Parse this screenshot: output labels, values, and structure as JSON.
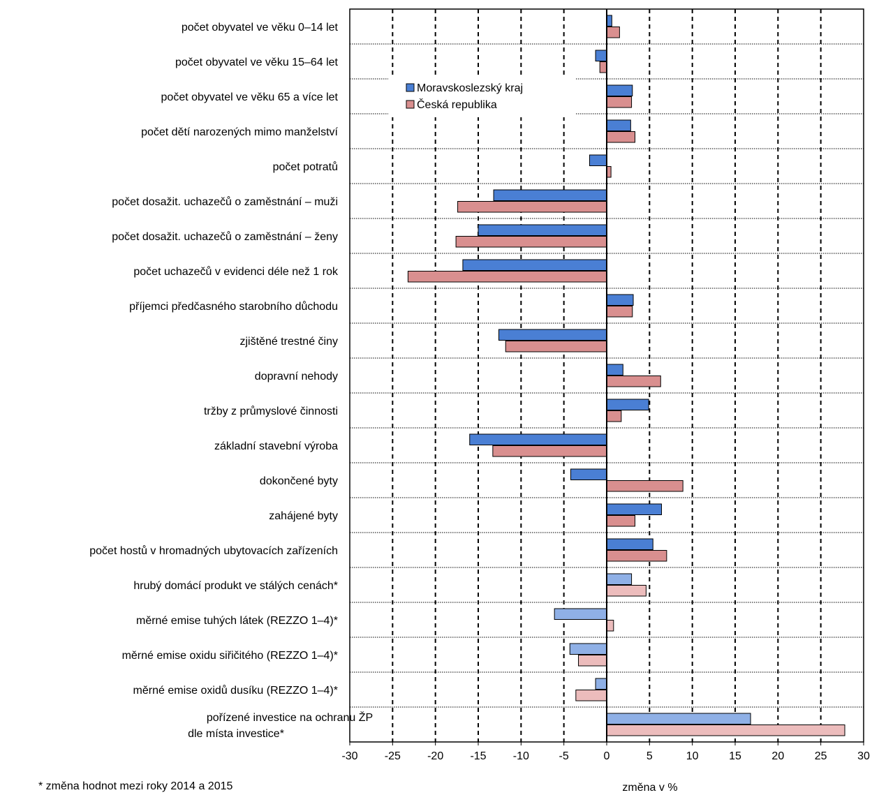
{
  "chart_data": {
    "type": "bar",
    "orientation": "horizontal",
    "xlabel": "změna v %",
    "xlim": [
      -30,
      30
    ],
    "xticks": [
      -30,
      -25,
      -20,
      -15,
      -10,
      -5,
      0,
      5,
      10,
      15,
      20,
      25,
      30
    ],
    "grid": "vertical dashed",
    "legend_position": "top-center",
    "categories": [
      "počet obyvatel ve věku 0–14 let",
      "počet obyvatel ve věku 15–64 let",
      "počet obyvatel ve věku 65 a více let",
      "počet dětí narozených mimo manželství",
      "počet potratů",
      "počet dosažit. uchazečů o zaměstnání – muži",
      "počet dosažit. uchazečů o zaměstnání – ženy",
      "počet uchazečů v evidenci déle než 1 rok",
      "příjemci předčasného starobního důchodu",
      "zjištěné trestné činy",
      "dopravní nehody",
      "tržby z průmyslové činnosti",
      "základní stavební výroba",
      "dokončené byty",
      "zahájené byty",
      "počet hostů v hromadných ubytovacích zařízeních",
      "hrubý domácí produkt ve stálých cenách*",
      "měrné emise tuhých látek (REZZO 1–4)*",
      "měrné emise oxidu siřičitého (REZZO 1–4)*",
      "měrné emise oxidů dusíku (REZZO 1–4)*",
      [
        "pořízené investice na ochranu ŽP",
        "dle místa investice*"
      ]
    ],
    "series": [
      {
        "name": "Moravskoslezský kraj",
        "color": "#4a7fd4",
        "color_light": "#8fb0e6",
        "values": [
          0.6,
          -1.3,
          3.0,
          2.8,
          -2.0,
          -13.2,
          -15.0,
          -16.8,
          3.1,
          -12.6,
          1.9,
          4.9,
          -16.0,
          -4.2,
          6.4,
          5.4,
          2.9,
          -6.1,
          -4.3,
          -1.3,
          16.8
        ]
      },
      {
        "name": "Česká republika",
        "color": "#d98f8f",
        "color_light": "#ecbcbc",
        "values": [
          1.5,
          -0.8,
          2.9,
          3.3,
          0.5,
          -17.4,
          -17.6,
          -23.2,
          3.0,
          -11.8,
          6.3,
          1.7,
          -13.3,
          8.9,
          3.3,
          7.0,
          4.6,
          0.8,
          -3.3,
          -3.6,
          27.8
        ]
      }
    ],
    "light_from_index": 16
  },
  "footnote": "* změna hodnot mezi roky 2014 a 2015"
}
